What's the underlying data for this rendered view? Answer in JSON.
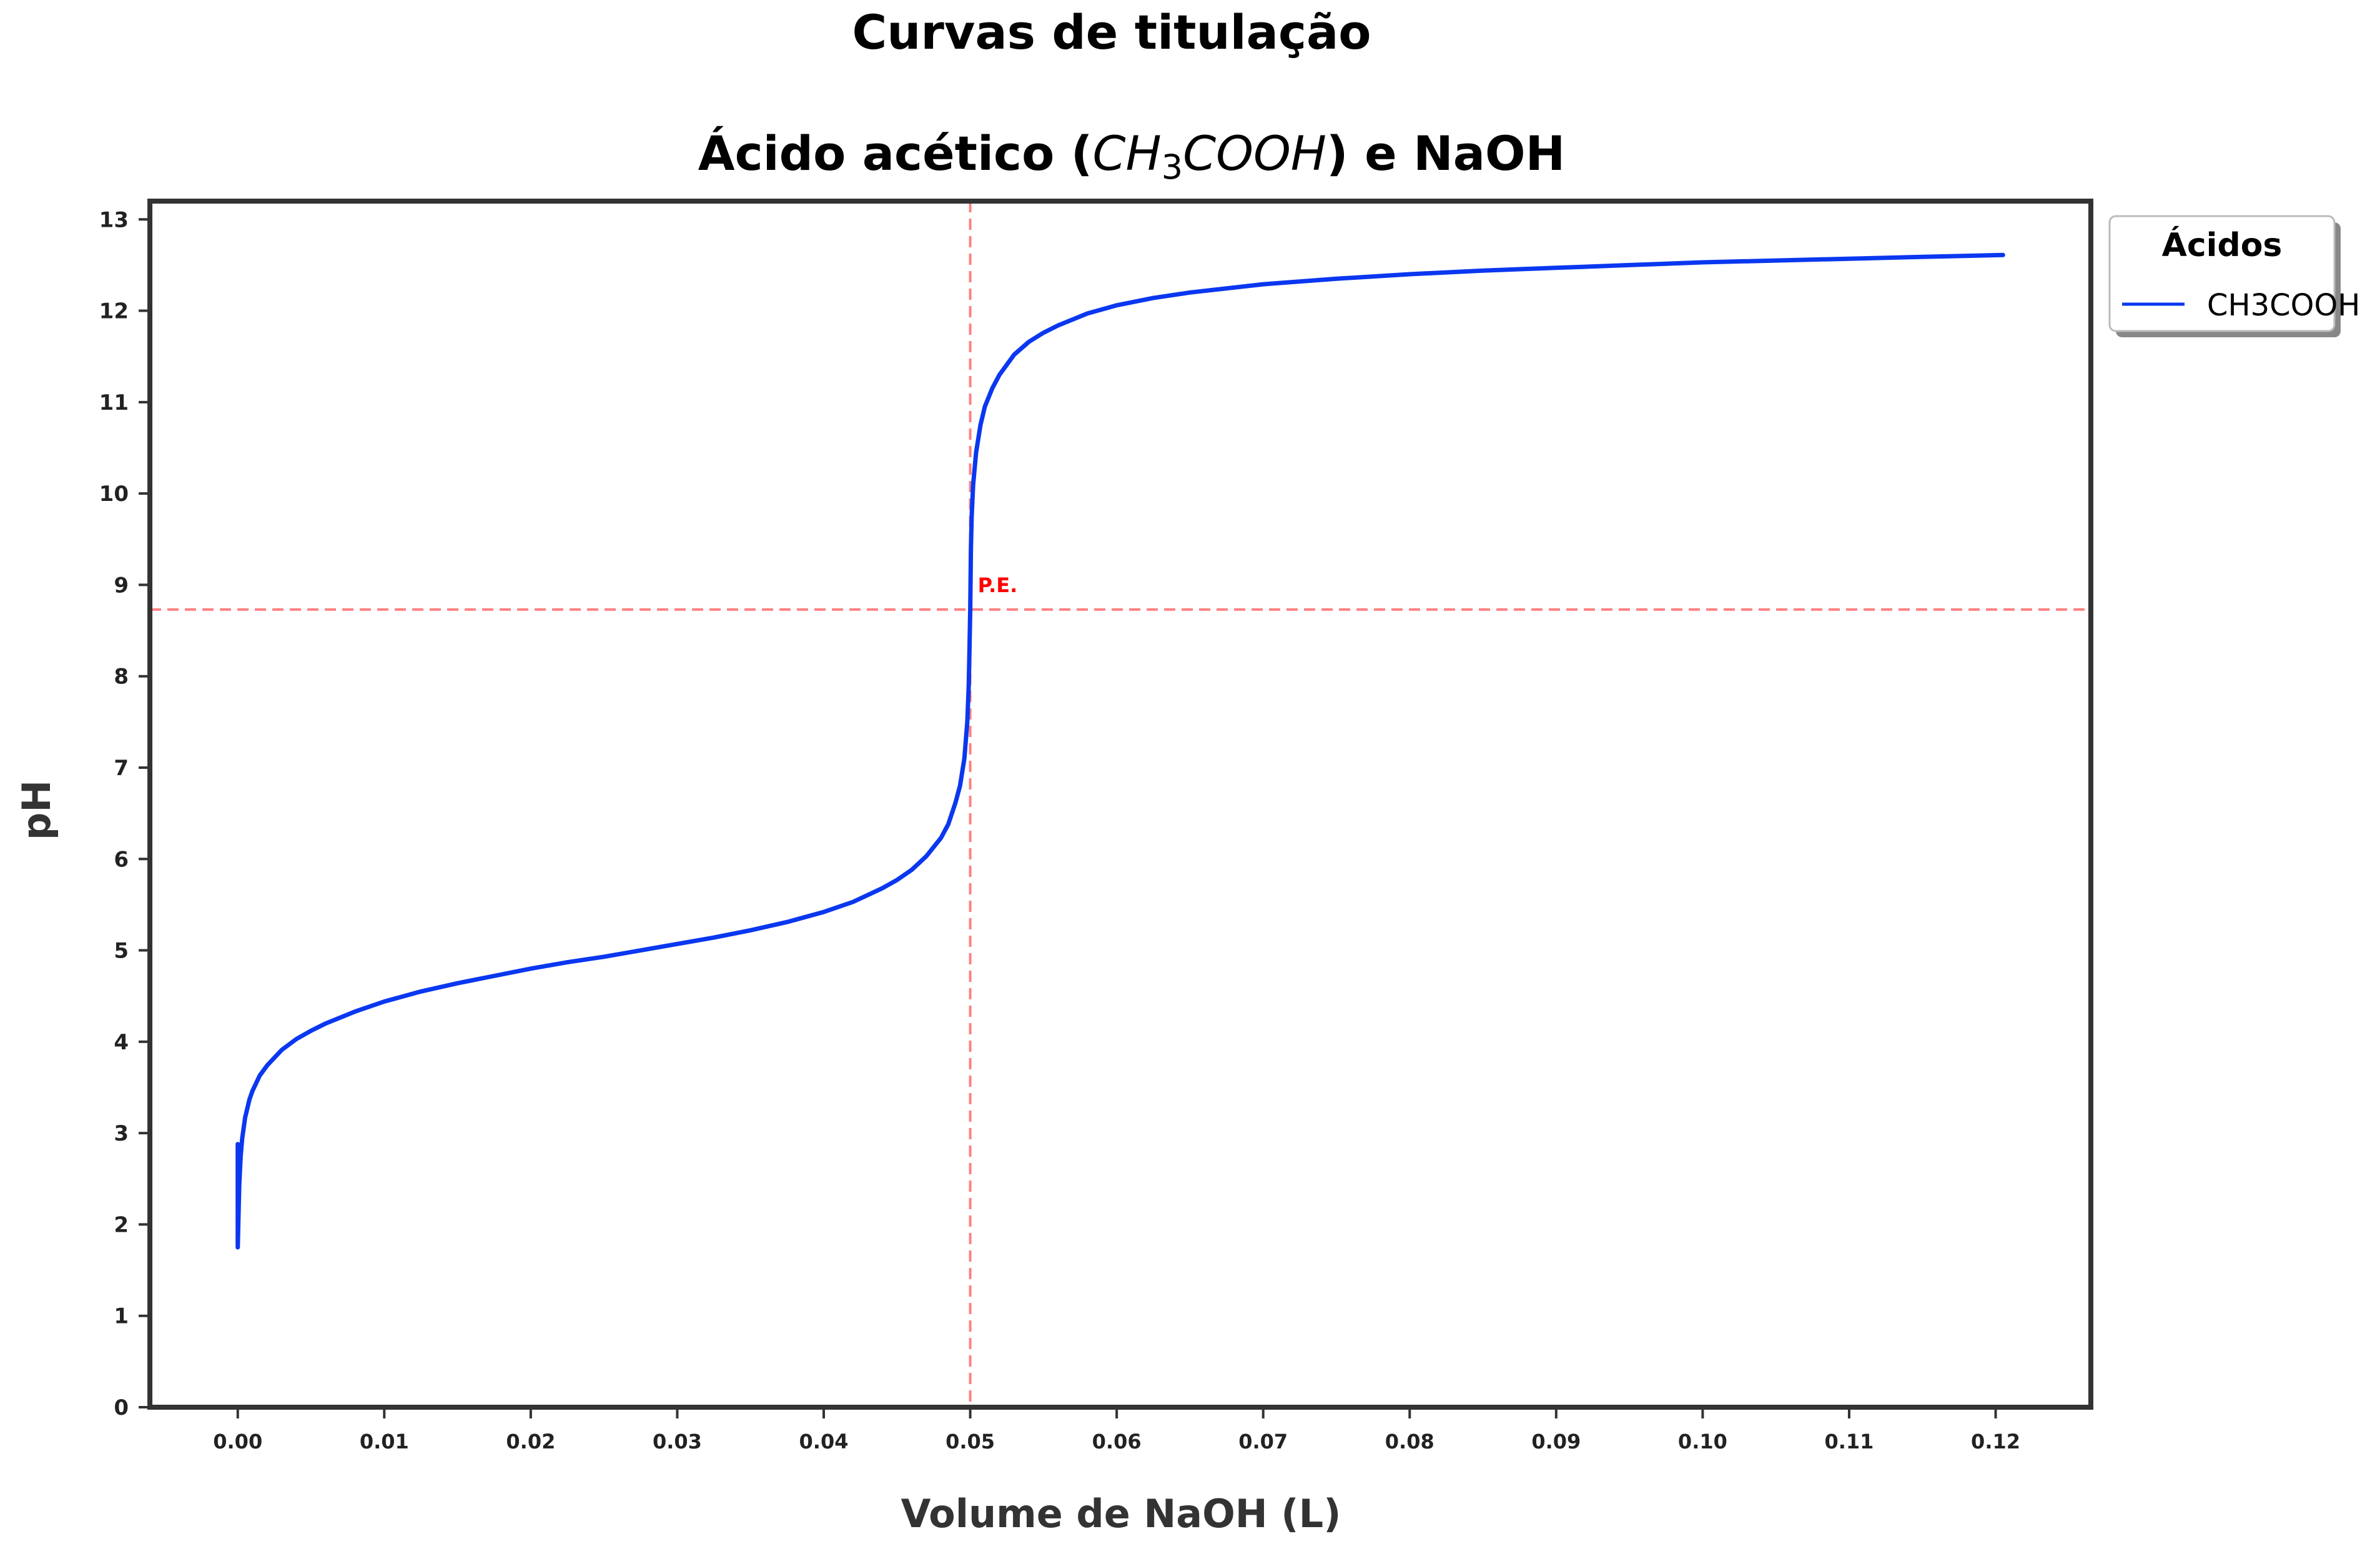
{
  "chart_data": {
    "type": "line",
    "title": "Curvas de titulação",
    "subtitle": {
      "before": "Ácido acético (",
      "formula_main": "CH",
      "formula_sub": "3",
      "formula_rest": "COOH",
      "after": ") e NaOH"
    },
    "xlabel": "Volume de NaOH (L)",
    "ylabel": "pH",
    "xlim": [
      -0.006,
      0.1265
    ],
    "ylim": [
      0,
      13.2
    ],
    "xticks": [
      0.0,
      0.01,
      0.02,
      0.03,
      0.04,
      0.05,
      0.06,
      0.07,
      0.08,
      0.09,
      0.1,
      0.11,
      0.12
    ],
    "xtick_labels": [
      "0.00",
      "0.01",
      "0.02",
      "0.03",
      "0.04",
      "0.05",
      "0.06",
      "0.07",
      "0.08",
      "0.09",
      "0.10",
      "0.11",
      "0.12"
    ],
    "yticks": [
      0,
      1,
      2,
      3,
      4,
      5,
      6,
      7,
      8,
      9,
      10,
      11,
      12,
      13
    ],
    "ytick_labels": [
      "0",
      "1",
      "2",
      "3",
      "4",
      "5",
      "6",
      "7",
      "8",
      "9",
      "10",
      "11",
      "12",
      "13"
    ],
    "grid": false,
    "legend": {
      "title": "Ácidos",
      "position": "outside-top-right"
    },
    "series": [
      {
        "name": "CH3COOH",
        "color": "#0a37f0",
        "x": [
          0.0,
          0.0,
          0.0001,
          0.0002,
          0.0003,
          0.0005,
          0.0008,
          0.001,
          0.0015,
          0.002,
          0.003,
          0.004,
          0.005,
          0.006,
          0.008,
          0.01,
          0.0125,
          0.015,
          0.0175,
          0.02,
          0.0225,
          0.025,
          0.0275,
          0.03,
          0.0325,
          0.035,
          0.0375,
          0.04,
          0.042,
          0.044,
          0.045,
          0.046,
          0.047,
          0.048,
          0.0485,
          0.049,
          0.0493,
          0.0496,
          0.0498,
          0.0499,
          0.04995,
          0.05,
          0.05005,
          0.0501,
          0.0502,
          0.0504,
          0.0507,
          0.051,
          0.0515,
          0.052,
          0.053,
          0.054,
          0.055,
          0.056,
          0.058,
          0.06,
          0.0625,
          0.065,
          0.07,
          0.075,
          0.08,
          0.085,
          0.09,
          0.095,
          0.1,
          0.105,
          0.11,
          0.115,
          0.1205
        ],
        "y": [
          2.88,
          1.75,
          2.43,
          2.75,
          2.94,
          3.17,
          3.37,
          3.46,
          3.63,
          3.74,
          3.91,
          4.03,
          4.12,
          4.2,
          4.33,
          4.44,
          4.55,
          4.64,
          4.72,
          4.8,
          4.87,
          4.93,
          5.0,
          5.07,
          5.14,
          5.22,
          5.31,
          5.42,
          5.53,
          5.68,
          5.77,
          5.88,
          6.03,
          6.23,
          6.38,
          6.62,
          6.8,
          7.1,
          7.5,
          7.9,
          8.3,
          8.73,
          9.4,
          9.75,
          10.1,
          10.45,
          10.75,
          10.95,
          11.15,
          11.3,
          11.52,
          11.66,
          11.76,
          11.84,
          11.97,
          12.06,
          12.14,
          12.2,
          12.29,
          12.35,
          12.4,
          12.44,
          12.47,
          12.5,
          12.53,
          12.55,
          12.57,
          12.59,
          12.61
        ]
      }
    ],
    "annotations": {
      "equivalence_point": {
        "label": "P.E.",
        "x": 0.05,
        "y": 8.73,
        "color": "#ff0000",
        "line_color": "#ff8080"
      }
    },
    "colors": {
      "frame": "#333333",
      "curve": "#0a37f0",
      "reference_lines": "#ff8080",
      "annotation_text": "#ff0000"
    }
  }
}
